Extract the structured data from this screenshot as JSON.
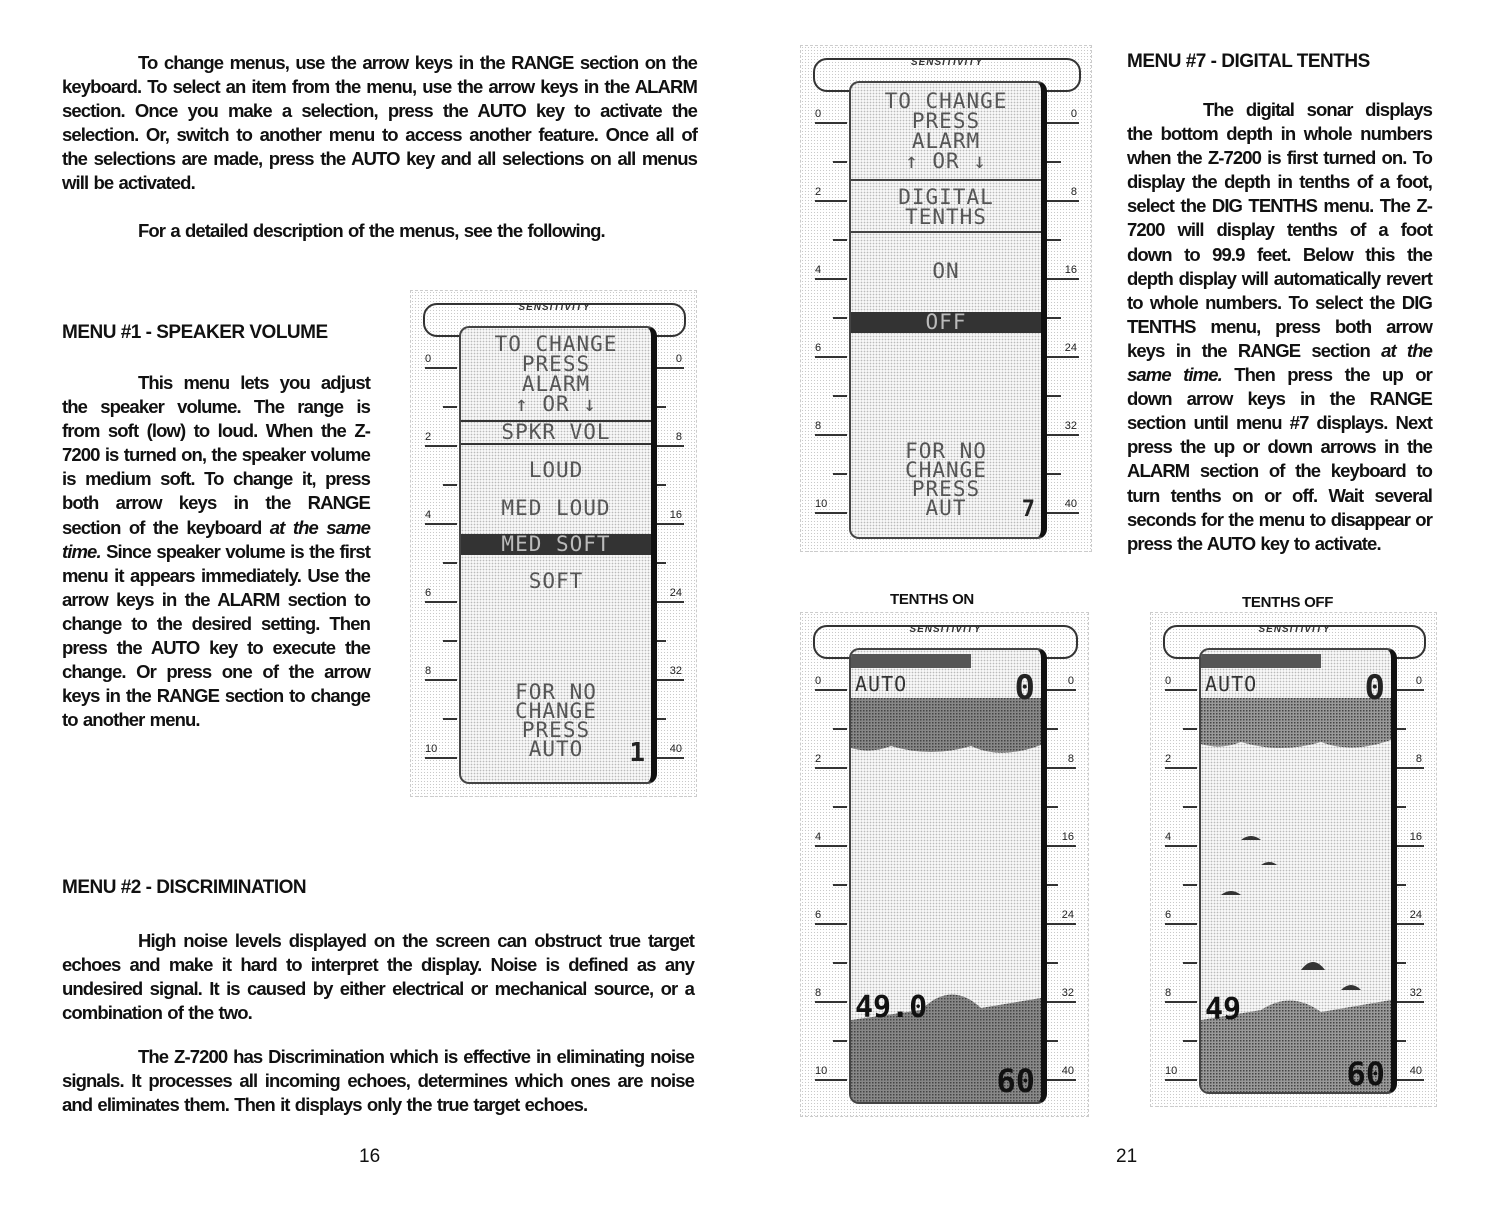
{
  "left_page": {
    "intro_paragraphs": [
      "To change menus, use the arrow keys in the RANGE section on the keyboard. To select an item from the menu, use the arrow keys in the ALARM section. Once you make a selection, press the AUTO key to activate the selection. Or, switch to another menu to access another feature. Once all of the selections are made, press the AUTO key and all selections on all menus will be activated.",
      "For a detailed description of the menus, see the following."
    ],
    "menu1": {
      "heading": "MENU #1 - SPEAKER VOLUME",
      "text_before": "This menu lets you adjust the speaker volume. The range is from soft (low) to loud. When the Z-7200 is turned on, the speaker volume is medium soft. To change it, press both arrow keys in the RANGE section of the keyboard ",
      "text_italic": "at the same time.",
      "text_after": " Since speaker volume is the first menu it appears immediately. Use the arrow keys in the ALARM section to change to the desired setting. Then press the AUTO key to execute the change. Or press one of the arrow keys in the RANGE section to change to another menu."
    },
    "menu2": {
      "heading": "MENU #2 - DISCRIMINATION",
      "paragraphs": [
        "High noise levels displayed on the screen can obstruct true target echoes and make it hard to interpret the display. Noise is defined as any undesired signal. It is caused by either electrical or mechanical source, or a combination of the two.",
        "The Z-7200 has Discrimination which is effective in eliminating noise signals. It processes all incoming echoes, determines which ones are noise and eliminates them. Then it displays only the true target echoes."
      ]
    },
    "page_number": "16"
  },
  "right_page": {
    "menu7": {
      "heading": "MENU #7 - DIGITAL TENTHS",
      "text_before": "The digital sonar displays the bottom depth in whole numbers when the Z-7200 is first turned on. To display the depth in tenths of a foot, select the DIG TENTHS menu. The Z-7200 will display tenths of a foot down to 99.9 feet. Below this the depth display will automatically revert to whole numbers. To select the DIG TENTHS menu, press both arrow keys in the RANGE section ",
      "text_italic": "at the same time.",
      "text_after": " Then press the up or down arrow keys in the RANGE section until menu #7 displays. Next press the up or down arrows in the ALARM section of the keyboard to turn tenths on or off. Wait several seconds for the menu to disappear or press the AUTO key to activate."
    },
    "page_number": "21"
  },
  "screens": {
    "sensitivity_label": "SENSITIVITY",
    "left_scale": [
      "0",
      "2",
      "4",
      "6",
      "8",
      "10"
    ],
    "right_scale": [
      "0",
      "8",
      "16",
      "24",
      "32",
      "40"
    ],
    "speaker_volume": {
      "header": [
        "TO CHANGE",
        "PRESS",
        "ALARM",
        "↑ OR ↓"
      ],
      "menu_title": "SPKR VOL",
      "options": [
        "LOUD",
        "MED LOUD",
        "MED SOFT",
        "SOFT"
      ],
      "selected": "MED SOFT",
      "footer": [
        "FOR NO",
        "CHANGE",
        "PRESS",
        "AUTO"
      ],
      "menu_number": "1"
    },
    "digital_tenths": {
      "header": [
        "TO CHANGE",
        "PRESS",
        "ALARM",
        "↑ OR ↓"
      ],
      "menu_title": [
        "DIGITAL",
        "TENTHS"
      ],
      "options": [
        "ON",
        "OFF"
      ],
      "selected": "OFF",
      "footer": [
        "FOR NO",
        "CHANGE",
        "PRESS",
        "AUT"
      ],
      "menu_number": "7"
    },
    "tenths_on": {
      "caption": "TENTHS ON",
      "mode": "AUTO",
      "top_depth": "0",
      "depth_reading": "49.0",
      "range": "60"
    },
    "tenths_off": {
      "caption": "TENTHS OFF",
      "mode": "AUTO",
      "top_depth": "0",
      "depth_reading": "49",
      "range": "60"
    }
  }
}
